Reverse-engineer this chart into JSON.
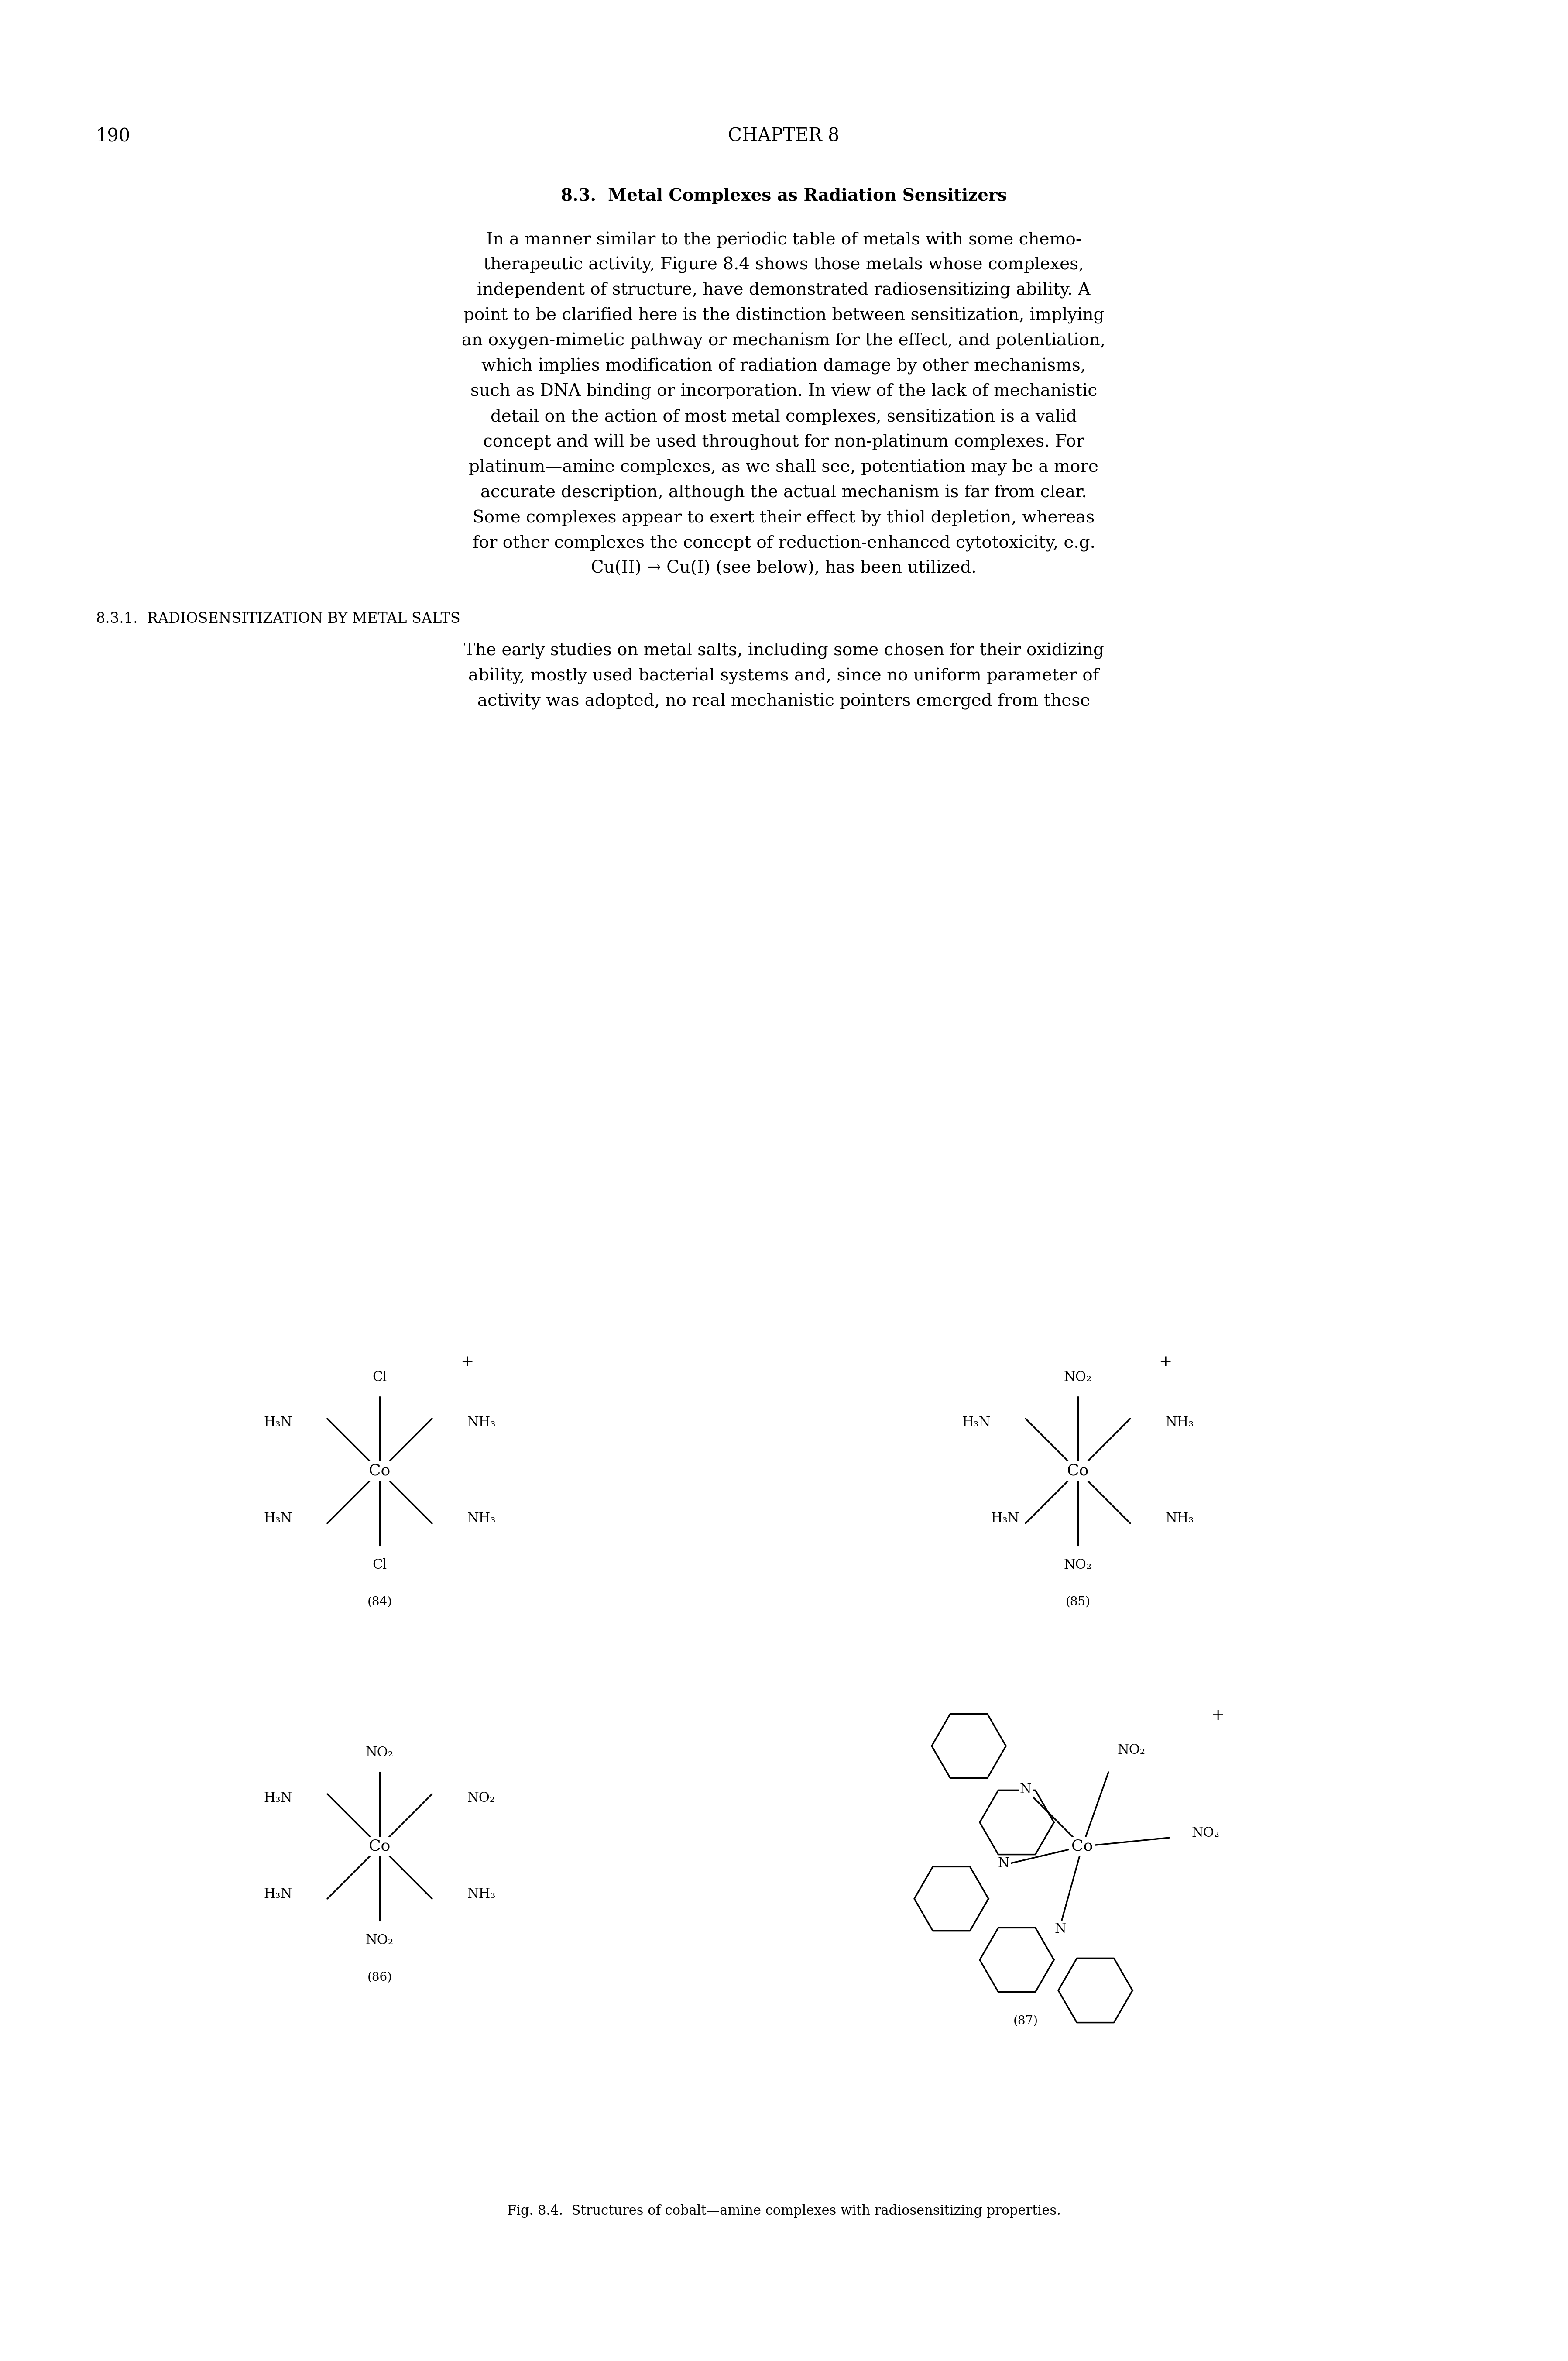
{
  "page_number": "190",
  "chapter_header": "CHAPTER 8",
  "section_title": "8.3.  Metal Complexes as Radiation Sensitizers",
  "paragraph1": "In a manner similar to the periodic table of metals with some chemo-therapeutic activity, Figure 8.4 shows those metals whose complexes, independent of structure, have demonstrated radiosensitizing ability. A point to be clarified here is the distinction between sensitization, implying an oxygen-mimetic pathway or mechanism for the effect, and potentiation, which implies modification of radiation damage by other mechanisms, such as DNA binding or incorporation. In view of the lack of mechanistic detail on the action of most metal complexes, sensitization is a valid concept and will be used throughout for non-platinum complexes. For platinum—amine complexes, as we shall see, potentiation may be a more accurate description, although the actual mechanism is far from clear. Some complexes appear to exert their effect by thiol depletion, whereas for other complexes the concept of reduction-enhanced cytotoxicity, e.g. Cu(II) → Cu(I) (see below), has been utilized.",
  "subsection_title": "8.3.1.  RADIOSENSITIZATION BY METAL SALTS",
  "paragraph2": "The early studies on metal salts, including some chosen for their oxidizing ability, mostly used bacterial systems and, since no uniform parameter of activity was adopted, no real mechanistic pointers emerged from these",
  "figure_caption": "Fig. 8.4.  Structures of cobalt—amine complexes with radiosensitizing properties.",
  "bg_color": "#ffffff",
  "text_color": "#000000",
  "font_size_body": 28,
  "font_size_header": 30,
  "font_size_section": 28,
  "font_size_subsection": 24,
  "font_size_caption": 22,
  "font_size_chem": 22,
  "font_size_label": 20
}
